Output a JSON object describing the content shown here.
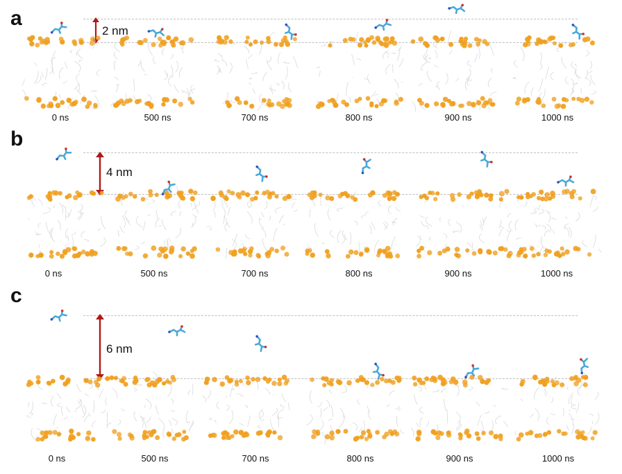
{
  "panels": [
    {
      "letter": "a",
      "distance": "2 nm",
      "times": [
        "0 ns",
        "500 ns",
        "700 ns",
        "800 ns",
        "900 ns",
        "1000 ns"
      ]
    },
    {
      "letter": "b",
      "distance": "4 nm",
      "times": [
        "0 ns",
        "500 ns",
        "700 ns",
        "800 ns",
        "900 ns",
        "1000 ns"
      ]
    },
    {
      "letter": "c",
      "distance": "6 nm",
      "times": [
        "0 ns",
        "500 ns",
        "700 ns",
        "800 ns",
        "900 ns",
        "1000 ns"
      ]
    }
  ],
  "colors": {
    "headgroup": "#f0a020",
    "lipid_tail": "#d8d8d8",
    "molecule": "#4aa8d8",
    "arrow": "#b01818",
    "dashed_line": "#bdbdbd"
  }
}
